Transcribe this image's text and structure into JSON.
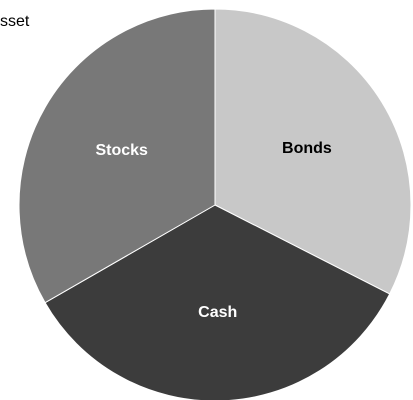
{
  "chart_data": {
    "type": "pie",
    "title": "sset",
    "categories": [
      "Bonds",
      "Cash",
      "Stocks"
    ],
    "values": [
      32.5,
      34.2,
      33.3
    ],
    "colors": [
      "#c8c8c8",
      "#3c3c3c",
      "#787878"
    ],
    "label_colors": [
      "#000000",
      "#ffffff",
      "#ffffff"
    ]
  }
}
